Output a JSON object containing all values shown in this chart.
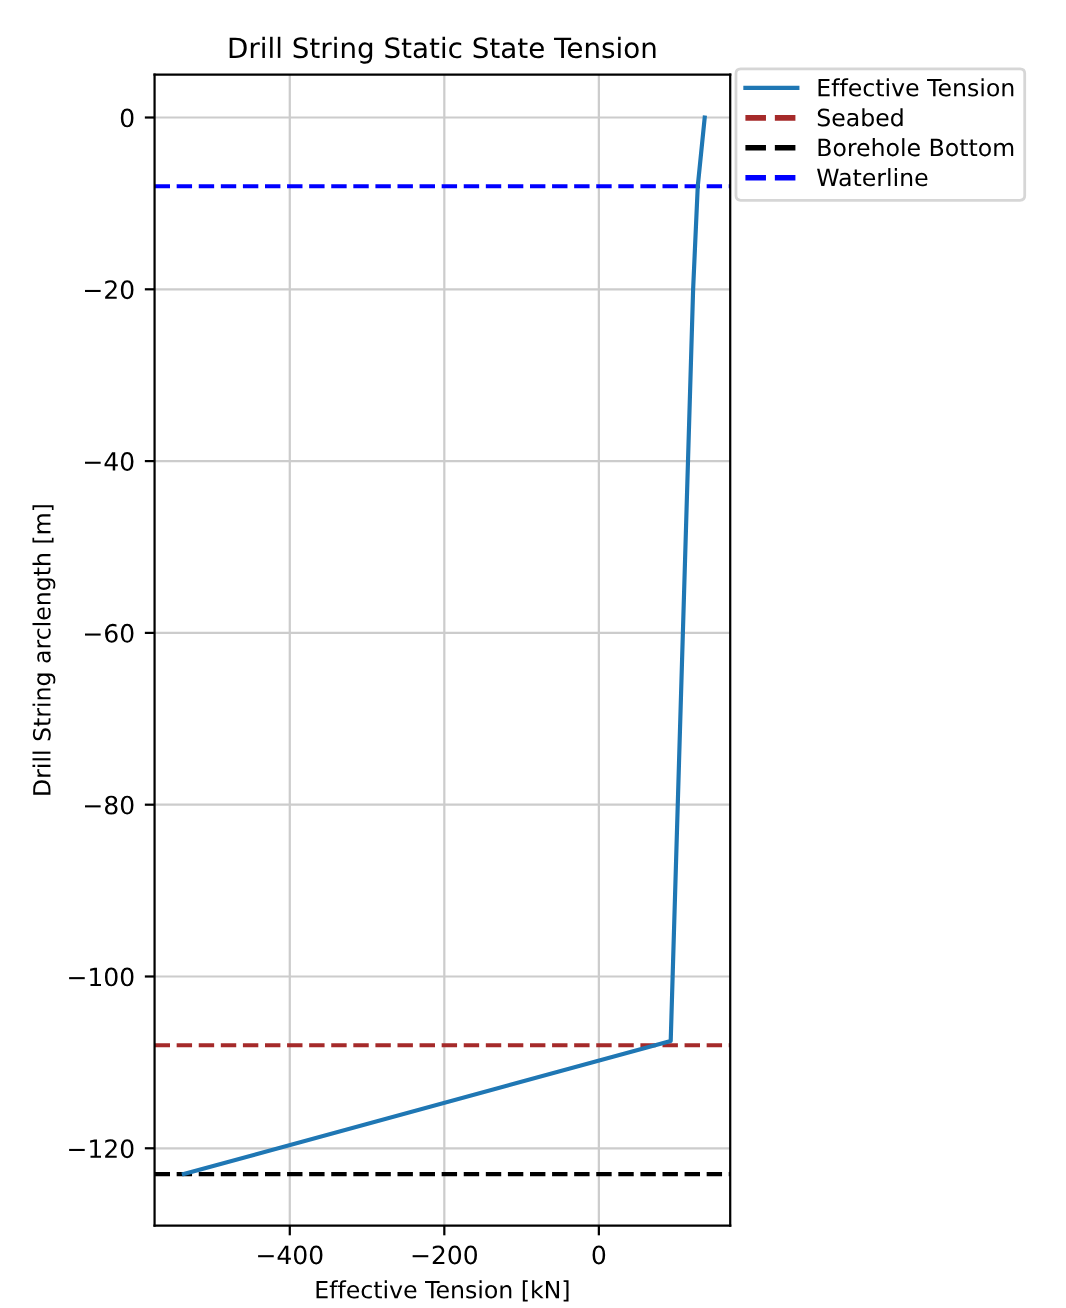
{
  "chart_data": {
    "type": "line",
    "title": "Drill String Static State Tension",
    "xlabel": "Effective Tension [kN]",
    "ylabel": "Drill String arclength [m]",
    "x": [
      137,
      128,
      122,
      93,
      -537
    ],
    "series": [
      {
        "name": "Effective Tension",
        "color": "#1f77b4",
        "values": [
          0,
          -8,
          -20,
          -107.5,
          -123
        ]
      }
    ],
    "ref_lines": [
      {
        "axis": "y",
        "value": -108,
        "label": "Seabed",
        "color": "#a52a2a",
        "line_style": "dashed"
      },
      {
        "axis": "y",
        "value": -123,
        "label": "Borehole Bottom",
        "color": "#000000",
        "line_style": "dashed"
      },
      {
        "axis": "y",
        "value": -8,
        "label": "Waterline",
        "color": "#0000ff",
        "line_style": "dashed"
      }
    ],
    "xlim": [
      -575,
      170
    ],
    "ylim": [
      -129,
      5
    ],
    "xticks": [
      {
        "value": -400,
        "label": "−400"
      },
      {
        "value": -200,
        "label": "−200"
      },
      0
    ],
    "yticks": [
      {
        "value": -120,
        "label": "−120"
      },
      {
        "value": -100,
        "label": "−100"
      },
      {
        "value": -80,
        "label": "−80"
      },
      {
        "value": -60,
        "label": "−60"
      },
      {
        "value": -40,
        "label": "−40"
      },
      {
        "value": -20,
        "label": "−20"
      },
      0
    ],
    "grid": true,
    "legend": "top right",
    "line_style": "solid"
  }
}
